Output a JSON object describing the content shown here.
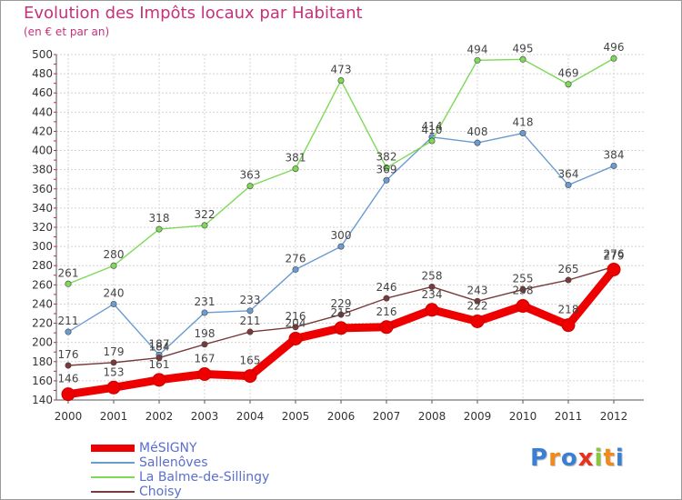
{
  "title": "Evolution des Impôts locaux par Habitant",
  "subtitle": "(en € et par an)",
  "logo": {
    "text": "Proxiti",
    "letter_colors": [
      "#3b7fd4",
      "#f08a1c",
      "#3b7fd4",
      "#e8321c",
      "#8cc63f",
      "#f08a1c",
      "#3b7fd4"
    ]
  },
  "chart_data": {
    "type": "line",
    "title": "Evolution des Impôts locaux par Habitant",
    "subtitle": "(en € et par an)",
    "x": [
      "2000",
      "2001",
      "2002",
      "2003",
      "2004",
      "2005",
      "2006",
      "2007",
      "2008",
      "2009",
      "2010",
      "2011",
      "2012"
    ],
    "ylim": [
      140,
      500
    ],
    "yticks": [
      140,
      160,
      180,
      200,
      220,
      240,
      260,
      280,
      300,
      320,
      340,
      360,
      380,
      400,
      420,
      440,
      460,
      480,
      500
    ],
    "grid": true,
    "legend_position": "bottom-left",
    "series": [
      {
        "name": "Sallenôves",
        "color": "#6a9bd1",
        "values": [
          211,
          240,
          187,
          231,
          233,
          276,
          300,
          369,
          414,
          408,
          418,
          364,
          384
        ]
      },
      {
        "name": "La Balme-de-Sillingy",
        "color": "#7ed957",
        "values": [
          261,
          280,
          318,
          322,
          363,
          381,
          473,
          382,
          410,
          494,
          495,
          469,
          496
        ]
      },
      {
        "name": "Choisy",
        "color": "#7a3a3a",
        "values": [
          176,
          179,
          184,
          198,
          211,
          216,
          229,
          246,
          258,
          243,
          255,
          265,
          279
        ]
      },
      {
        "name": "MéSIGNY",
        "color": "#ee0000",
        "values": [
          146,
          153,
          161,
          167,
          165,
          204,
          215,
          216,
          234,
          222,
          238,
          218,
          276
        ]
      }
    ]
  }
}
